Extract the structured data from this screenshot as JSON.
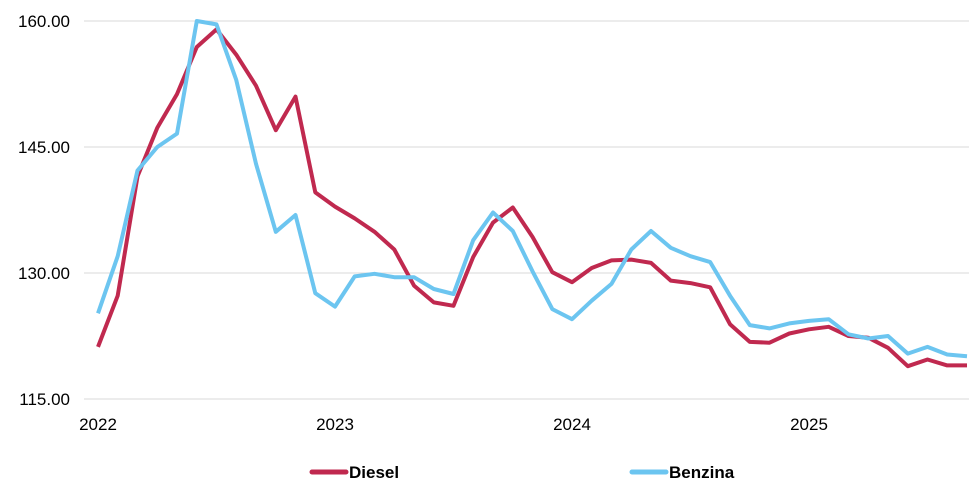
{
  "chart_data": {
    "type": "line",
    "title": "",
    "xlabel": "",
    "ylabel": "",
    "ylim": [
      115,
      160
    ],
    "yticks": [
      "160.00",
      "145.00",
      "130.00",
      "115.00"
    ],
    "ytick_values": [
      160,
      145,
      130,
      115
    ],
    "xticks": [
      "2022",
      "2023",
      "2024",
      "2025"
    ],
    "xtick_values": [
      2022,
      2023,
      2024,
      2025
    ],
    "grid": true,
    "legend_position": "bottom",
    "x": [
      2022.0,
      2022.0833,
      2022.1667,
      2022.25,
      2022.3333,
      2022.4167,
      2022.5,
      2022.5833,
      2022.6667,
      2022.75,
      2022.8333,
      2022.9167,
      2023.0,
      2023.0833,
      2023.1667,
      2023.25,
      2023.3333,
      2023.4167,
      2023.5,
      2023.5833,
      2023.6667,
      2023.75,
      2023.8333,
      2023.9167,
      2024.0,
      2024.0833,
      2024.1667,
      2024.25,
      2024.3333,
      2024.4167,
      2024.5,
      2024.5833,
      2024.6667,
      2024.75,
      2024.8333,
      2024.9167,
      2025.0,
      2025.0833,
      2025.1667,
      2025.25,
      2025.3333,
      2025.4167,
      2025.5,
      2025.5833,
      2025.6667
    ],
    "series": [
      {
        "name": "Diesel",
        "color": "#c0294f",
        "values": [
          121.2,
          127.3,
          141.5,
          147.3,
          151.3,
          156.9,
          159.0,
          156.0,
          152.3,
          147.0,
          151.0,
          139.6,
          137.9,
          136.5,
          134.9,
          132.8,
          128.5,
          126.5,
          126.1,
          131.9,
          136.0,
          137.8,
          134.3,
          130.1,
          128.9,
          130.6,
          131.5,
          131.6,
          131.2,
          129.1,
          128.8,
          128.3,
          123.9,
          121.8,
          121.7,
          122.8,
          123.3,
          123.6,
          122.5,
          122.3,
          121.1,
          118.9,
          119.7,
          119.0,
          119.0
        ]
      },
      {
        "name": "Benzina",
        "color": "#6cc5f0",
        "values": [
          125.2,
          132.0,
          142.2,
          145.0,
          146.6,
          160.0,
          159.6,
          153.0,
          143.0,
          134.9,
          136.9,
          127.6,
          126.0,
          129.6,
          129.9,
          129.5,
          129.5,
          128.1,
          127.5,
          133.9,
          137.2,
          135.0,
          130.2,
          125.7,
          124.5,
          126.7,
          128.7,
          132.8,
          135.0,
          133.0,
          132.0,
          131.3,
          127.3,
          123.8,
          123.4,
          124.0,
          124.3,
          124.5,
          122.7,
          122.2,
          122.5,
          120.4,
          121.2,
          120.3,
          120.1
        ]
      }
    ]
  }
}
